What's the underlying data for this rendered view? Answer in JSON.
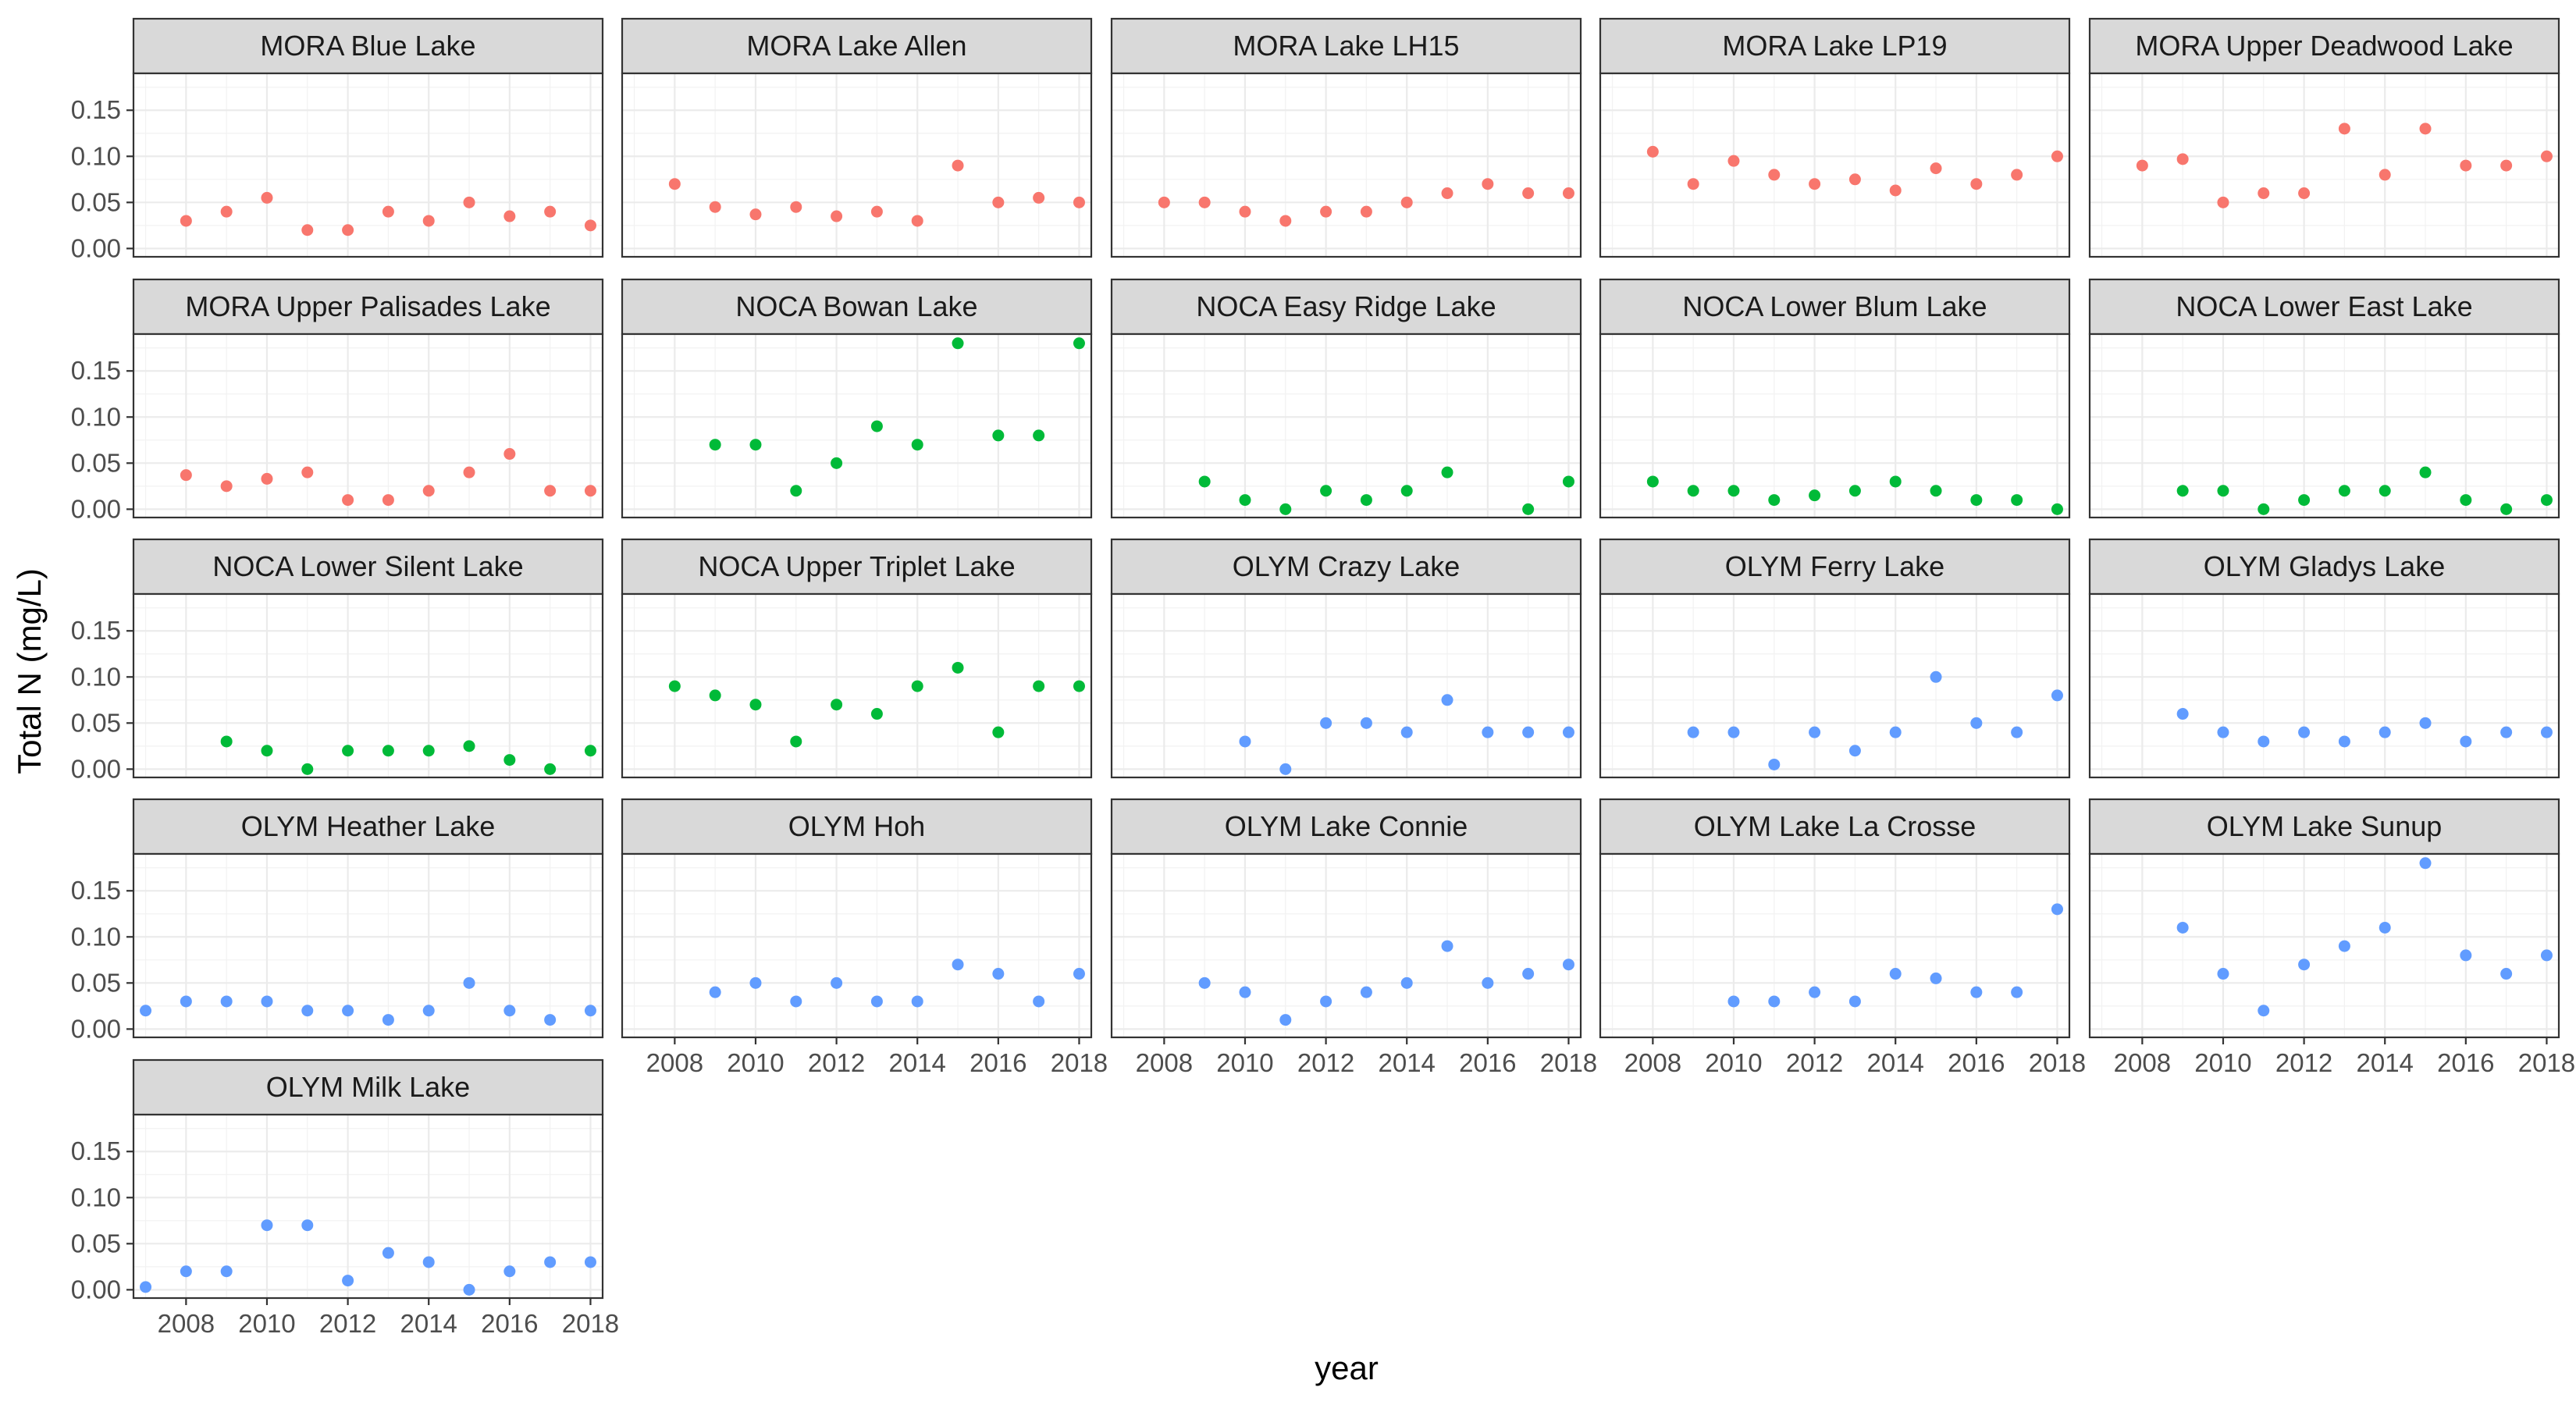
{
  "chart_data": {
    "type": "scatter",
    "layout": "faceted small multiples, 5 columns x 5 rows, facet strip titles on top",
    "xlabel": "year",
    "ylabel": "Total N (mg/L)",
    "xlim": [
      2006.7,
      2018.3
    ],
    "ylim": [
      -0.009,
      0.19
    ],
    "x_ticks": [
      2008,
      2010,
      2012,
      2014,
      2016,
      2018
    ],
    "y_ticks": [
      0.0,
      0.05,
      0.1,
      0.15
    ],
    "y_tick_labels": [
      "0.00",
      "0.05",
      "0.10",
      "0.15"
    ],
    "grid": true,
    "legend": "none",
    "colors": {
      "MORA": "#F8766D",
      "NOCA": "#00BA38",
      "OLYM": "#619CFF"
    },
    "facets": [
      {
        "name": "MORA Blue Lake",
        "park": "MORA",
        "x": [
          2008,
          2009,
          2010,
          2011,
          2012,
          2013,
          2014,
          2015,
          2016,
          2017,
          2018
        ],
        "y": [
          0.03,
          0.04,
          0.055,
          0.02,
          0.02,
          0.04,
          0.03,
          0.05,
          0.035,
          0.04,
          0.025
        ]
      },
      {
        "name": "MORA Lake Allen",
        "park": "MORA",
        "x": [
          2008,
          2009,
          2010,
          2011,
          2012,
          2013,
          2014,
          2015,
          2016,
          2017,
          2018
        ],
        "y": [
          0.07,
          0.045,
          0.037,
          0.045,
          0.035,
          0.04,
          0.03,
          0.09,
          0.05,
          0.055,
          0.05
        ]
      },
      {
        "name": "MORA Lake LH15",
        "park": "MORA",
        "x": [
          2008,
          2009,
          2010,
          2011,
          2012,
          2013,
          2014,
          2015,
          2016,
          2017,
          2018
        ],
        "y": [
          0.05,
          0.05,
          0.04,
          0.03,
          0.04,
          0.04,
          0.05,
          0.06,
          0.07,
          0.06,
          0.06
        ]
      },
      {
        "name": "MORA Lake LP19",
        "park": "MORA",
        "x": [
          2008,
          2009,
          2010,
          2011,
          2012,
          2013,
          2014,
          2015,
          2016,
          2017,
          2018
        ],
        "y": [
          0.105,
          0.07,
          0.095,
          0.08,
          0.07,
          0.075,
          0.063,
          0.087,
          0.07,
          0.08,
          0.1
        ]
      },
      {
        "name": "MORA Upper Deadwood Lake",
        "park": "MORA",
        "x": [
          2008,
          2009,
          2010,
          2011,
          2012,
          2013,
          2014,
          2015,
          2016,
          2017,
          2018
        ],
        "y": [
          0.09,
          0.097,
          0.05,
          0.06,
          0.06,
          0.13,
          0.08,
          0.13,
          0.09,
          0.09,
          0.1
        ]
      },
      {
        "name": "MORA Upper Palisades Lake",
        "park": "MORA",
        "x": [
          2008,
          2009,
          2010,
          2011,
          2012,
          2013,
          2014,
          2015,
          2016,
          2017,
          2018
        ],
        "y": [
          0.037,
          0.025,
          0.033,
          0.04,
          0.01,
          0.01,
          0.02,
          0.04,
          0.06,
          0.02,
          0.02
        ]
      },
      {
        "name": "NOCA Bowan Lake",
        "park": "NOCA",
        "x": [
          2009,
          2010,
          2011,
          2012,
          2013,
          2014,
          2015,
          2016,
          2017,
          2018
        ],
        "y": [
          0.07,
          0.07,
          0.02,
          0.05,
          0.09,
          0.07,
          0.18,
          0.08,
          0.08,
          0.18
        ]
      },
      {
        "name": "NOCA Easy Ridge Lake",
        "park": "NOCA",
        "x": [
          2009,
          2010,
          2011,
          2012,
          2013,
          2014,
          2015,
          2017,
          2018
        ],
        "y": [
          0.03,
          0.01,
          0.0,
          0.02,
          0.01,
          0.02,
          0.04,
          0.0,
          0.03
        ]
      },
      {
        "name": "NOCA Lower Blum Lake",
        "park": "NOCA",
        "x": [
          2008,
          2009,
          2010,
          2011,
          2012,
          2013,
          2014,
          2015,
          2016,
          2017,
          2018
        ],
        "y": [
          0.03,
          0.02,
          0.02,
          0.01,
          0.015,
          0.02,
          0.03,
          0.02,
          0.01,
          0.01,
          0.0
        ]
      },
      {
        "name": "NOCA Lower East Lake",
        "park": "NOCA",
        "x": [
          2009,
          2010,
          2011,
          2012,
          2013,
          2014,
          2015,
          2016,
          2017,
          2018
        ],
        "y": [
          0.02,
          0.02,
          0.0,
          0.01,
          0.02,
          0.02,
          0.04,
          0.01,
          0.0,
          0.01
        ]
      },
      {
        "name": "NOCA Lower Silent Lake",
        "park": "NOCA",
        "x": [
          2009,
          2010,
          2011,
          2012,
          2013,
          2014,
          2015,
          2016,
          2017,
          2018
        ],
        "y": [
          0.03,
          0.02,
          0.0,
          0.02,
          0.02,
          0.02,
          0.025,
          0.01,
          0.0,
          0.02
        ]
      },
      {
        "name": "NOCA Upper Triplet Lake",
        "park": "NOCA",
        "x": [
          2008,
          2009,
          2010,
          2011,
          2012,
          2013,
          2014,
          2015,
          2016,
          2017,
          2018
        ],
        "y": [
          0.09,
          0.08,
          0.07,
          0.03,
          0.07,
          0.06,
          0.09,
          0.11,
          0.04,
          0.09,
          0.09
        ]
      },
      {
        "name": "OLYM Crazy Lake",
        "park": "OLYM",
        "x": [
          2010,
          2011,
          2012,
          2013,
          2014,
          2015,
          2016,
          2017,
          2018
        ],
        "y": [
          0.03,
          0.0,
          0.05,
          0.05,
          0.04,
          0.075,
          0.04,
          0.04,
          0.04
        ]
      },
      {
        "name": "OLYM Ferry Lake",
        "park": "OLYM",
        "x": [
          2009,
          2010,
          2011,
          2012,
          2013,
          2014,
          2015,
          2016,
          2017,
          2018
        ],
        "y": [
          0.04,
          0.04,
          0.005,
          0.04,
          0.02,
          0.04,
          0.1,
          0.05,
          0.04,
          0.08
        ]
      },
      {
        "name": "OLYM Gladys Lake",
        "park": "OLYM",
        "x": [
          2009,
          2010,
          2011,
          2012,
          2013,
          2014,
          2015,
          2016,
          2017,
          2018
        ],
        "y": [
          0.06,
          0.04,
          0.03,
          0.04,
          0.03,
          0.04,
          0.05,
          0.03,
          0.04,
          0.04
        ]
      },
      {
        "name": "OLYM Heather Lake",
        "park": "OLYM",
        "x": [
          2007,
          2008,
          2009,
          2010,
          2011,
          2012,
          2013,
          2014,
          2015,
          2016,
          2017,
          2018
        ],
        "y": [
          0.02,
          0.03,
          0.03,
          0.03,
          0.02,
          0.02,
          0.01,
          0.02,
          0.05,
          0.02,
          0.01,
          0.02
        ]
      },
      {
        "name": "OLYM Hoh",
        "park": "OLYM",
        "x": [
          2009,
          2010,
          2011,
          2012,
          2013,
          2014,
          2015,
          2016,
          2017,
          2018
        ],
        "y": [
          0.04,
          0.05,
          0.03,
          0.05,
          0.03,
          0.03,
          0.07,
          0.06,
          0.03,
          0.06
        ]
      },
      {
        "name": "OLYM Lake Connie",
        "park": "OLYM",
        "x": [
          2009,
          2010,
          2011,
          2012,
          2013,
          2014,
          2015,
          2016,
          2017,
          2018
        ],
        "y": [
          0.05,
          0.04,
          0.01,
          0.03,
          0.04,
          0.05,
          0.09,
          0.05,
          0.06,
          0.07
        ]
      },
      {
        "name": "OLYM Lake La Crosse",
        "park": "OLYM",
        "x": [
          2010,
          2011,
          2012,
          2013,
          2014,
          2015,
          2016,
          2017,
          2018
        ],
        "y": [
          0.03,
          0.03,
          0.04,
          0.03,
          0.06,
          0.055,
          0.04,
          0.04,
          0.13
        ]
      },
      {
        "name": "OLYM Lake Sunup",
        "park": "OLYM",
        "x": [
          2009,
          2010,
          2011,
          2012,
          2013,
          2014,
          2015,
          2016,
          2017,
          2018
        ],
        "y": [
          0.11,
          0.06,
          0.02,
          0.07,
          0.09,
          0.11,
          0.18,
          0.08,
          0.06,
          0.08
        ]
      },
      {
        "name": "OLYM Milk Lake",
        "park": "OLYM",
        "x": [
          2007,
          2008,
          2009,
          2010,
          2011,
          2012,
          2013,
          2014,
          2015,
          2016,
          2017,
          2018
        ],
        "y": [
          0.003,
          0.02,
          0.02,
          0.07,
          0.07,
          0.01,
          0.04,
          0.03,
          0.0,
          0.02,
          0.03,
          0.03
        ]
      }
    ]
  }
}
